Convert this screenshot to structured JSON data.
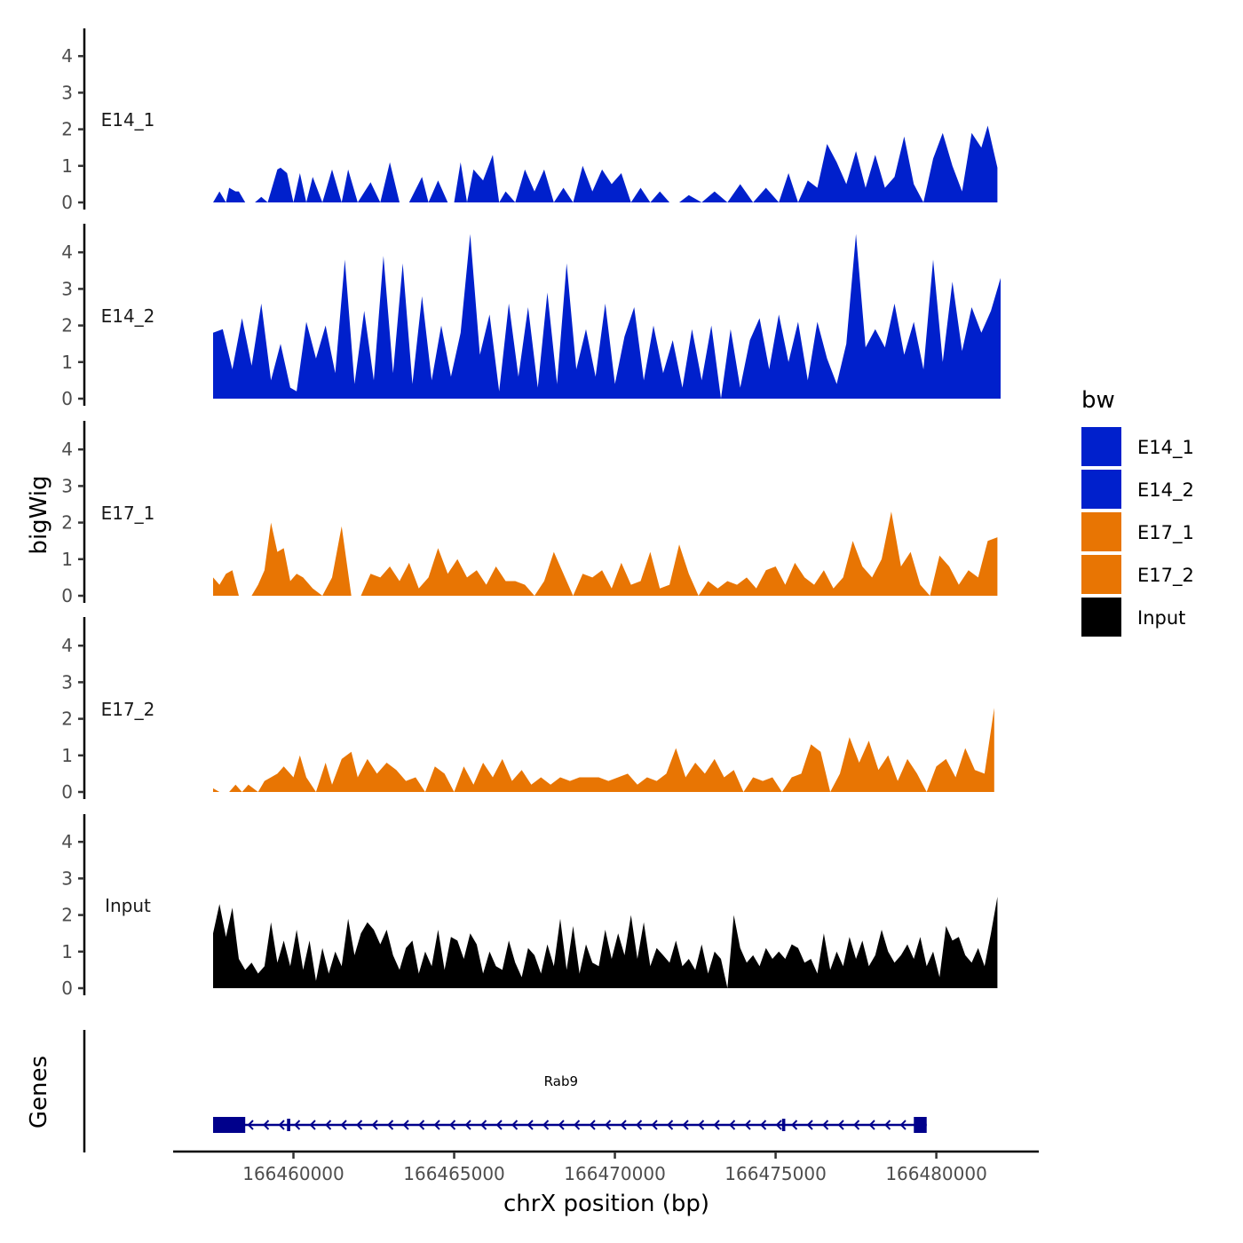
{
  "chart_data": {
    "type": "area",
    "title": "",
    "xlabel": "chrX position (bp)",
    "ylabel": "bigWig",
    "genes_panel_label": "Genes",
    "x_range": [
      166457500,
      166482000
    ],
    "x_ticks": [
      166460000,
      166465000,
      166470000,
      166475000,
      166480000
    ],
    "x_tick_labels": [
      "166460000",
      "166465000",
      "166470000",
      "166475000",
      "166480000"
    ],
    "ylim": [
      0,
      4.6
    ],
    "y_ticks": [
      0,
      1,
      2,
      3,
      4
    ],
    "y_tick_labels": [
      "0",
      "1",
      "2",
      "3",
      "4"
    ],
    "legend": {
      "title": "bw",
      "position": "right",
      "entries": [
        {
          "label": "E14_1",
          "color": "#0020CC"
        },
        {
          "label": "E14_2",
          "color": "#0020CC"
        },
        {
          "label": "E17_1",
          "color": "#E87503"
        },
        {
          "label": "E17_2",
          "color": "#E87503"
        },
        {
          "label": "Input",
          "color": "#000000"
        }
      ]
    },
    "series": [
      {
        "name": "E14_1",
        "color": "#0020CC",
        "x": [
          166457500,
          166457700,
          166457900,
          166458000,
          166458200,
          166458300,
          166458500,
          166458800,
          166459000,
          166459200,
          166459500,
          166459600,
          166459800,
          166460000,
          166460200,
          166460400,
          166460600,
          166460900,
          166461200,
          166461500,
          166461700,
          166462000,
          166462400,
          166462700,
          166463000,
          166463300,
          166463600,
          166464000,
          166464200,
          166464500,
          166464800,
          166465000,
          166465200,
          166465400,
          166465600,
          166465900,
          166466200,
          166466400,
          166466600,
          166466900,
          166467200,
          166467500,
          166467800,
          166468100,
          166468400,
          166468700,
          166469000,
          166469300,
          166469600,
          166469900,
          166470200,
          166470500,
          166470800,
          166471100,
          166471400,
          166471700,
          166472000,
          166472300,
          166472700,
          166473100,
          166473500,
          166473900,
          166474300,
          166474700,
          166475100,
          166475400,
          166475700,
          166476000,
          166476300,
          166476600,
          166476900,
          166477200,
          166477500,
          166477800,
          166478100,
          166478400,
          166478700,
          166479000,
          166479300,
          166479600,
          166479900,
          166480200,
          166480500,
          166480800,
          166481100,
          166481400,
          166481600,
          166481900
        ],
        "values": [
          0,
          0.3,
          0,
          0.4,
          0.3,
          0.3,
          0,
          0,
          0.15,
          0,
          0.9,
          0.95,
          0.8,
          0,
          0.8,
          0,
          0.7,
          0,
          0.9,
          0,
          0.9,
          0,
          0.55,
          0,
          1.1,
          0,
          0,
          0.7,
          0,
          0.6,
          0,
          0,
          1.1,
          0,
          0.9,
          0.6,
          1.3,
          0,
          0.3,
          0,
          0.9,
          0.3,
          0.9,
          0,
          0.4,
          0,
          1.0,
          0.3,
          0.9,
          0.5,
          0.8,
          0,
          0.4,
          0,
          0.3,
          0,
          0,
          0.2,
          0,
          0.3,
          0,
          0.5,
          0,
          0.4,
          0,
          0.8,
          0,
          0.6,
          0.4,
          1.6,
          1.1,
          0.5,
          1.4,
          0.4,
          1.3,
          0.4,
          0.7,
          1.8,
          0.5,
          0,
          1.2,
          1.9,
          1.0,
          0.3,
          1.9,
          1.5,
          2.1,
          0.95
        ]
      },
      {
        "name": "E14_2",
        "color": "#0020CC",
        "x": [
          166457500,
          166457800,
          166458100,
          166458400,
          166458700,
          166459000,
          166459300,
          166459600,
          166459900,
          166460100,
          166460400,
          166460700,
          166461000,
          166461300,
          166461600,
          166461900,
          166462200,
          166462500,
          166462800,
          166463100,
          166463400,
          166463700,
          166464000,
          166464300,
          166464600,
          166464900,
          166465200,
          166465500,
          166465800,
          166466100,
          166466400,
          166466700,
          166467000,
          166467300,
          166467600,
          166467900,
          166468200,
          166468500,
          166468800,
          166469100,
          166469400,
          166469700,
          166470000,
          166470300,
          166470600,
          166470900,
          166471200,
          166471500,
          166471800,
          166472100,
          166472400,
          166472700,
          166473000,
          166473300,
          166473600,
          166473900,
          166474200,
          166474500,
          166474800,
          166475100,
          166475400,
          166475700,
          166476000,
          166476300,
          166476600,
          166476900,
          166477200,
          166477500,
          166477800,
          166478100,
          166478400,
          166478700,
          166479000,
          166479300,
          166479600,
          166479900,
          166480200,
          166480500,
          166480800,
          166481100,
          166481400,
          166481700,
          166482000
        ],
        "values": [
          1.8,
          1.9,
          0.8,
          2.2,
          0.9,
          2.6,
          0.5,
          1.5,
          0.3,
          0.2,
          2.1,
          1.1,
          2.0,
          0.7,
          3.8,
          0.4,
          2.4,
          0.5,
          3.9,
          0.7,
          3.7,
          0.4,
          2.8,
          0.5,
          2.0,
          0.6,
          1.8,
          4.5,
          1.2,
          2.3,
          0.2,
          2.6,
          0.6,
          2.5,
          0.3,
          2.9,
          0.4,
          3.7,
          0.8,
          1.9,
          0.6,
          2.6,
          0.4,
          1.7,
          2.5,
          0.5,
          2.0,
          0.7,
          1.6,
          0.3,
          1.9,
          0.5,
          2.0,
          0,
          1.9,
          0.3,
          1.6,
          2.2,
          0.8,
          2.3,
          1.0,
          2.1,
          0.5,
          2.1,
          1.1,
          0.4,
          1.5,
          4.5,
          1.4,
          1.9,
          1.4,
          2.6,
          1.2,
          2.1,
          0.8,
          3.8,
          1.0,
          3.2,
          1.3,
          2.5,
          1.8,
          2.4,
          3.3
        ]
      },
      {
        "name": "E17_1",
        "color": "#E87503",
        "x": [
          166457500,
          166457700,
          166457900,
          166458100,
          166458300,
          166458500,
          166458700,
          166458900,
          166459100,
          166459300,
          166459500,
          166459700,
          166459900,
          166460100,
          166460300,
          166460600,
          166460900,
          166461200,
          166461500,
          166461800,
          166462100,
          166462400,
          166462700,
          166463000,
          166463300,
          166463600,
          166463900,
          166464200,
          166464500,
          166464800,
          166465100,
          166465400,
          166465700,
          166466000,
          166466300,
          166466600,
          166466900,
          166467200,
          166467500,
          166467800,
          166468100,
          166468400,
          166468700,
          166469000,
          166469300,
          166469600,
          166469900,
          166470200,
          166470500,
          166470800,
          166471100,
          166471400,
          166471700,
          166472000,
          166472300,
          166472600,
          166472900,
          166473200,
          166473500,
          166473800,
          166474100,
          166474400,
          166474700,
          166475000,
          166475300,
          166475600,
          166475900,
          166476200,
          166476500,
          166476800,
          166477100,
          166477400,
          166477700,
          166478000,
          166478300,
          166478600,
          166478900,
          166479200,
          166479500,
          166479800,
          166480100,
          166480400,
          166480700,
          166481000,
          166481300,
          166481600,
          166481900
        ],
        "values": [
          0.5,
          0.3,
          0.6,
          0.7,
          0,
          0,
          0,
          0.3,
          0.7,
          2.0,
          1.2,
          1.3,
          0.4,
          0.6,
          0.5,
          0.2,
          0,
          0.5,
          1.9,
          0,
          0,
          0.6,
          0.5,
          0.8,
          0.4,
          0.9,
          0.2,
          0.5,
          1.3,
          0.6,
          1.0,
          0.5,
          0.7,
          0.3,
          0.8,
          0.4,
          0.4,
          0.3,
          0,
          0.4,
          1.2,
          0.6,
          0,
          0.6,
          0.5,
          0.7,
          0.2,
          0.9,
          0.3,
          0.4,
          1.2,
          0.2,
          0.3,
          1.4,
          0.6,
          0,
          0.4,
          0.2,
          0.4,
          0.3,
          0.5,
          0.2,
          0.7,
          0.8,
          0.3,
          0.9,
          0.5,
          0.3,
          0.7,
          0.2,
          0.5,
          1.5,
          0.8,
          0.5,
          1.0,
          2.3,
          0.8,
          1.2,
          0.3,
          0,
          1.1,
          0.8,
          0.3,
          0.7,
          0.5,
          1.5,
          1.6
        ]
      },
      {
        "name": "E17_2",
        "color": "#E87503",
        "x": [
          166457500,
          166457700,
          166458000,
          166458200,
          166458400,
          166458600,
          166458900,
          166459100,
          166459300,
          166459500,
          166459700,
          166460000,
          166460200,
          166460400,
          166460700,
          166461000,
          166461200,
          166461500,
          166461800,
          166462000,
          166462300,
          166462600,
          166462900,
          166463200,
          166463500,
          166463800,
          166464100,
          166464400,
          166464700,
          166465000,
          166465300,
          166465600,
          166465900,
          166466200,
          166466500,
          166466800,
          166467100,
          166467400,
          166467700,
          166468000,
          166468300,
          166468600,
          166468900,
          166469200,
          166469500,
          166469800,
          166470100,
          166470400,
          166470700,
          166471000,
          166471300,
          166471600,
          166471900,
          166472200,
          166472500,
          166472800,
          166473100,
          166473400,
          166473700,
          166474000,
          166474300,
          166474600,
          166474900,
          166475200,
          166475500,
          166475800,
          166476100,
          166476400,
          166476700,
          166477000,
          166477300,
          166477600,
          166477900,
          166478200,
          166478500,
          166478800,
          166479100,
          166479400,
          166479700,
          166480000,
          166480300,
          166480600,
          166480900,
          166481200,
          166481500,
          166481800
        ],
        "values": [
          0.1,
          0,
          0,
          0.2,
          0,
          0.2,
          0,
          0.3,
          0.4,
          0.5,
          0.7,
          0.4,
          1.0,
          0.4,
          0,
          0.8,
          0.2,
          0.9,
          1.1,
          0.4,
          0.9,
          0.5,
          0.8,
          0.6,
          0.3,
          0.4,
          0,
          0.7,
          0.5,
          0,
          0.7,
          0.2,
          0.8,
          0.4,
          0.9,
          0.3,
          0.6,
          0.2,
          0.4,
          0.2,
          0.4,
          0.3,
          0.4,
          0.4,
          0.4,
          0.3,
          0.4,
          0.5,
          0.2,
          0.4,
          0.3,
          0.5,
          1.2,
          0.4,
          0.8,
          0.5,
          0.9,
          0.4,
          0.6,
          0,
          0.4,
          0.3,
          0.4,
          0,
          0.4,
          0.5,
          1.3,
          1.1,
          0,
          0.5,
          1.5,
          0.8,
          1.4,
          0.6,
          1.0,
          0.3,
          0.9,
          0.5,
          0,
          0.7,
          0.9,
          0.4,
          1.2,
          0.6,
          0.5,
          2.3
        ]
      },
      {
        "name": "Input",
        "color": "#000000",
        "x": [
          166457500,
          166457700,
          166457900,
          166458100,
          166458300,
          166458500,
          166458700,
          166458900,
          166459100,
          166459300,
          166459500,
          166459700,
          166459900,
          166460100,
          166460300,
          166460500,
          166460700,
          166460900,
          166461100,
          166461300,
          166461500,
          166461700,
          166461900,
          166462100,
          166462300,
          166462500,
          166462700,
          166462900,
          166463100,
          166463300,
          166463500,
          166463700,
          166463900,
          166464100,
          166464300,
          166464500,
          166464700,
          166464900,
          166465100,
          166465300,
          166465500,
          166465700,
          166465900,
          166466100,
          166466300,
          166466500,
          166466700,
          166466900,
          166467100,
          166467300,
          166467500,
          166467700,
          166467900,
          166468100,
          166468300,
          166468500,
          166468700,
          166468900,
          166469100,
          166469300,
          166469500,
          166469700,
          166469900,
          166470100,
          166470300,
          166470500,
          166470700,
          166470900,
          166471100,
          166471300,
          166471500,
          166471700,
          166471900,
          166472100,
          166472300,
          166472500,
          166472700,
          166472900,
          166473100,
          166473300,
          166473500,
          166473700,
          166473900,
          166474100,
          166474300,
          166474500,
          166474700,
          166474900,
          166475100,
          166475300,
          166475500,
          166475700,
          166475900,
          166476100,
          166476300,
          166476500,
          166476700,
          166476900,
          166477100,
          166477300,
          166477500,
          166477700,
          166477900,
          166478100,
          166478300,
          166478500,
          166478700,
          166478900,
          166479100,
          166479300,
          166479500,
          166479700,
          166479900,
          166480100,
          166480300,
          166480500,
          166480700,
          166480900,
          166481100,
          166481300,
          166481500,
          166481700,
          166481900
        ],
        "values": [
          1.5,
          2.3,
          1.4,
          2.2,
          0.8,
          0.5,
          0.7,
          0.4,
          0.6,
          1.8,
          0.7,
          1.3,
          0.6,
          1.6,
          0.5,
          1.3,
          0.2,
          1.1,
          0.4,
          1.0,
          0.6,
          1.9,
          0.9,
          1.5,
          1.8,
          1.6,
          1.2,
          1.6,
          0.9,
          0.5,
          1.1,
          1.3,
          0.4,
          1.0,
          0.6,
          1.6,
          0.5,
          1.4,
          1.3,
          0.8,
          1.5,
          1.2,
          0.4,
          1.0,
          0.6,
          0.5,
          1.3,
          0.7,
          0.3,
          1.1,
          0.9,
          0.4,
          1.2,
          0.6,
          1.9,
          0.5,
          1.7,
          0.4,
          1.2,
          0.7,
          0.6,
          1.6,
          0.8,
          1.5,
          0.9,
          2.0,
          0.8,
          1.8,
          0.6,
          1.1,
          0.9,
          0.7,
          1.3,
          0.6,
          0.8,
          0.5,
          1.2,
          0.4,
          1.0,
          0.8,
          0,
          2.0,
          1.1,
          0.7,
          0.9,
          0.6,
          1.1,
          0.8,
          1.0,
          0.8,
          1.2,
          1.1,
          0.7,
          0.8,
          0.4,
          1.5,
          0.5,
          1.0,
          0.6,
          1.4,
          0.8,
          1.3,
          0.6,
          0.9,
          1.6,
          1.0,
          0.7,
          0.9,
          1.2,
          0.8,
          1.4,
          0.6,
          1.0,
          0.3,
          1.7,
          1.3,
          1.4,
          0.9,
          0.7,
          1.1,
          0.6,
          1.5,
          2.5
        ]
      }
    ],
    "genes": [
      {
        "name": "Rab9",
        "strand": "-",
        "color": "#00008B",
        "start": 166457500,
        "end": 166479700,
        "exons": [
          [
            166457500,
            166458500
          ],
          [
            166459800,
            166459900
          ],
          [
            166475200,
            166475300
          ],
          [
            166479300,
            166479700
          ]
        ]
      }
    ]
  }
}
